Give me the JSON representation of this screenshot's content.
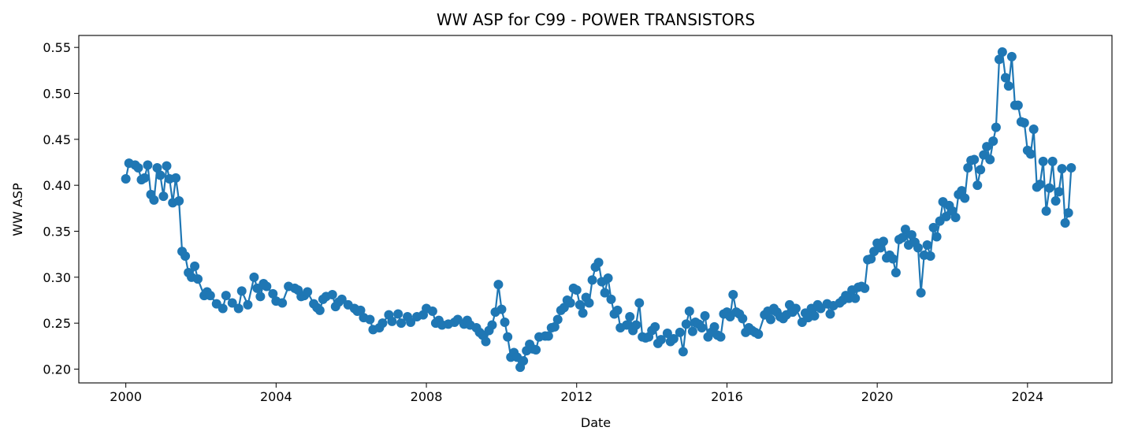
{
  "chart_data": {
    "type": "line",
    "title": "WW ASP for C99 - POWER TRANSISTORS",
    "xlabel": "Date",
    "ylabel": "WW ASP",
    "x_range": [
      "1998-10-01",
      "2026-04-01"
    ],
    "ylim": [
      0.185,
      0.563
    ],
    "x_ticks": [
      {
        "date": "2000-01-01",
        "label": "2000"
      },
      {
        "date": "2004-01-01",
        "label": "2004"
      },
      {
        "date": "2008-01-01",
        "label": "2008"
      },
      {
        "date": "2012-01-01",
        "label": "2012"
      },
      {
        "date": "2016-01-01",
        "label": "2016"
      },
      {
        "date": "2020-01-01",
        "label": "2020"
      },
      {
        "date": "2024-01-01",
        "label": "2024"
      }
    ],
    "y_ticks": [
      {
        "value": 0.2,
        "label": "0.20"
      },
      {
        "value": 0.25,
        "label": "0.25"
      },
      {
        "value": 0.3,
        "label": "0.30"
      },
      {
        "value": 0.35,
        "label": "0.35"
      },
      {
        "value": 0.4,
        "label": "0.40"
      },
      {
        "value": 0.45,
        "label": "0.45"
      },
      {
        "value": 0.5,
        "label": "0.50"
      },
      {
        "value": 0.55,
        "label": "0.55"
      }
    ],
    "grid": false,
    "series": [
      {
        "color": "#1f77b4",
        "marker": "circle",
        "points": [
          [
            "2000-01-01",
            0.407
          ],
          [
            "2000-02-01",
            0.424
          ],
          [
            "2000-04-01",
            0.422
          ],
          [
            "2000-05-01",
            0.419
          ],
          [
            "2000-06-01",
            0.406
          ],
          [
            "2000-07-01",
            0.408
          ],
          [
            "2000-08-01",
            0.422
          ],
          [
            "2000-09-01",
            0.39
          ],
          [
            "2000-10-01",
            0.384
          ],
          [
            "2000-11-01",
            0.419
          ],
          [
            "2000-12-01",
            0.411
          ],
          [
            "2001-01-01",
            0.388
          ],
          [
            "2001-02-01",
            0.421
          ],
          [
            "2001-03-01",
            0.407
          ],
          [
            "2001-04-01",
            0.381
          ],
          [
            "2001-05-01",
            0.408
          ],
          [
            "2001-06-01",
            0.383
          ],
          [
            "2001-07-01",
            0.328
          ],
          [
            "2001-08-01",
            0.323
          ],
          [
            "2001-09-01",
            0.305
          ],
          [
            "2001-10-01",
            0.3
          ],
          [
            "2001-11-01",
            0.312
          ],
          [
            "2001-12-01",
            0.298
          ],
          [
            "2002-02-01",
            0.28
          ],
          [
            "2002-03-01",
            0.284
          ],
          [
            "2002-04-01",
            0.28
          ],
          [
            "2002-06-01",
            0.271
          ],
          [
            "2002-08-01",
            0.266
          ],
          [
            "2002-09-01",
            0.28
          ],
          [
            "2002-11-01",
            0.272
          ],
          [
            "2003-01-01",
            0.266
          ],
          [
            "2003-02-01",
            0.285
          ],
          [
            "2003-04-01",
            0.27
          ],
          [
            "2003-06-01",
            0.3
          ],
          [
            "2003-07-01",
            0.288
          ],
          [
            "2003-08-01",
            0.279
          ],
          [
            "2003-09-01",
            0.293
          ],
          [
            "2003-10-01",
            0.29
          ],
          [
            "2003-12-01",
            0.282
          ],
          [
            "2004-01-01",
            0.274
          ],
          [
            "2004-03-01",
            0.272
          ],
          [
            "2004-05-01",
            0.29
          ],
          [
            "2004-07-01",
            0.288
          ],
          [
            "2004-08-01",
            0.286
          ],
          [
            "2004-09-01",
            0.279
          ],
          [
            "2004-10-01",
            0.28
          ],
          [
            "2004-11-01",
            0.284
          ],
          [
            "2005-01-01",
            0.271
          ],
          [
            "2005-02-01",
            0.267
          ],
          [
            "2005-03-01",
            0.264
          ],
          [
            "2005-04-01",
            0.276
          ],
          [
            "2005-05-01",
            0.279
          ],
          [
            "2005-07-01",
            0.281
          ],
          [
            "2005-08-01",
            0.268
          ],
          [
            "2005-09-01",
            0.273
          ],
          [
            "2005-10-01",
            0.276
          ],
          [
            "2005-12-01",
            0.27
          ],
          [
            "2006-02-01",
            0.266
          ],
          [
            "2006-03-01",
            0.263
          ],
          [
            "2006-04-01",
            0.264
          ],
          [
            "2006-05-01",
            0.256
          ],
          [
            "2006-07-01",
            0.254
          ],
          [
            "2006-08-01",
            0.243
          ],
          [
            "2006-10-01",
            0.245
          ],
          [
            "2006-11-01",
            0.25
          ],
          [
            "2007-01-01",
            0.259
          ],
          [
            "2007-02-01",
            0.252
          ],
          [
            "2007-04-01",
            0.26
          ],
          [
            "2007-05-01",
            0.25
          ],
          [
            "2007-07-01",
            0.257
          ],
          [
            "2007-08-01",
            0.251
          ],
          [
            "2007-10-01",
            0.257
          ],
          [
            "2007-12-01",
            0.259
          ],
          [
            "2008-01-01",
            0.266
          ],
          [
            "2008-03-01",
            0.263
          ],
          [
            "2008-04-01",
            0.25
          ],
          [
            "2008-05-01",
            0.253
          ],
          [
            "2008-06-01",
            0.248
          ],
          [
            "2008-08-01",
            0.249
          ],
          [
            "2008-10-01",
            0.251
          ],
          [
            "2008-11-01",
            0.254
          ],
          [
            "2009-01-01",
            0.249
          ],
          [
            "2009-02-01",
            0.253
          ],
          [
            "2009-03-01",
            0.248
          ],
          [
            "2009-05-01",
            0.245
          ],
          [
            "2009-06-01",
            0.24
          ],
          [
            "2009-07-01",
            0.237
          ],
          [
            "2009-08-01",
            0.23
          ],
          [
            "2009-09-01",
            0.242
          ],
          [
            "2009-10-01",
            0.248
          ],
          [
            "2009-11-01",
            0.262
          ],
          [
            "2009-12-01",
            0.292
          ],
          [
            "2010-01-01",
            0.265
          ],
          [
            "2010-02-01",
            0.251
          ],
          [
            "2010-03-01",
            0.235
          ],
          [
            "2010-04-01",
            0.213
          ],
          [
            "2010-05-01",
            0.218
          ],
          [
            "2010-06-01",
            0.213
          ],
          [
            "2010-07-01",
            0.202
          ],
          [
            "2010-08-01",
            0.209
          ],
          [
            "2010-09-01",
            0.22
          ],
          [
            "2010-10-01",
            0.227
          ],
          [
            "2010-11-01",
            0.222
          ],
          [
            "2010-12-01",
            0.221
          ],
          [
            "2011-01-01",
            0.235
          ],
          [
            "2011-03-01",
            0.236
          ],
          [
            "2011-04-01",
            0.236
          ],
          [
            "2011-05-01",
            0.245
          ],
          [
            "2011-06-01",
            0.246
          ],
          [
            "2011-07-01",
            0.254
          ],
          [
            "2011-08-01",
            0.264
          ],
          [
            "2011-09-01",
            0.267
          ],
          [
            "2011-10-01",
            0.275
          ],
          [
            "2011-11-01",
            0.272
          ],
          [
            "2011-12-01",
            0.288
          ],
          [
            "2012-01-01",
            0.286
          ],
          [
            "2012-02-01",
            0.27
          ],
          [
            "2012-03-01",
            0.261
          ],
          [
            "2012-04-01",
            0.278
          ],
          [
            "2012-05-01",
            0.272
          ],
          [
            "2012-06-01",
            0.297
          ],
          [
            "2012-07-01",
            0.311
          ],
          [
            "2012-08-01",
            0.316
          ],
          [
            "2012-09-01",
            0.295
          ],
          [
            "2012-10-01",
            0.283
          ],
          [
            "2012-11-01",
            0.299
          ],
          [
            "2012-12-01",
            0.276
          ],
          [
            "2013-01-01",
            0.26
          ],
          [
            "2013-02-01",
            0.264
          ],
          [
            "2013-03-01",
            0.245
          ],
          [
            "2013-05-01",
            0.248
          ],
          [
            "2013-06-01",
            0.257
          ],
          [
            "2013-07-01",
            0.242
          ],
          [
            "2013-08-01",
            0.248
          ],
          [
            "2013-09-01",
            0.272
          ],
          [
            "2013-10-01",
            0.235
          ],
          [
            "2013-11-01",
            0.234
          ],
          [
            "2013-12-01",
            0.235
          ],
          [
            "2014-01-01",
            0.242
          ],
          [
            "2014-02-01",
            0.246
          ],
          [
            "2014-03-01",
            0.228
          ],
          [
            "2014-04-01",
            0.232
          ],
          [
            "2014-06-01",
            0.239
          ],
          [
            "2014-07-01",
            0.23
          ],
          [
            "2014-08-01",
            0.233
          ],
          [
            "2014-10-01",
            0.24
          ],
          [
            "2014-11-01",
            0.219
          ],
          [
            "2014-12-01",
            0.249
          ],
          [
            "2015-01-01",
            0.263
          ],
          [
            "2015-02-01",
            0.241
          ],
          [
            "2015-03-01",
            0.251
          ],
          [
            "2015-04-01",
            0.249
          ],
          [
            "2015-05-01",
            0.245
          ],
          [
            "2015-06-01",
            0.258
          ],
          [
            "2015-07-01",
            0.235
          ],
          [
            "2015-08-01",
            0.24
          ],
          [
            "2015-09-01",
            0.246
          ],
          [
            "2015-10-01",
            0.237
          ],
          [
            "2015-11-01",
            0.235
          ],
          [
            "2015-12-01",
            0.26
          ],
          [
            "2016-01-01",
            0.262
          ],
          [
            "2016-02-01",
            0.257
          ],
          [
            "2016-03-01",
            0.281
          ],
          [
            "2016-04-01",
            0.262
          ],
          [
            "2016-05-01",
            0.26
          ],
          [
            "2016-06-01",
            0.255
          ],
          [
            "2016-07-01",
            0.24
          ],
          [
            "2016-08-01",
            0.245
          ],
          [
            "2016-09-01",
            0.242
          ],
          [
            "2016-10-01",
            0.24
          ],
          [
            "2016-11-01",
            0.238
          ],
          [
            "2017-01-01",
            0.259
          ],
          [
            "2017-02-01",
            0.263
          ],
          [
            "2017-03-01",
            0.254
          ],
          [
            "2017-04-01",
            0.266
          ],
          [
            "2017-05-01",
            0.262
          ],
          [
            "2017-06-01",
            0.257
          ],
          [
            "2017-07-01",
            0.255
          ],
          [
            "2017-08-01",
            0.259
          ],
          [
            "2017-09-01",
            0.27
          ],
          [
            "2017-10-01",
            0.262
          ],
          [
            "2017-11-01",
            0.266
          ],
          [
            "2018-01-01",
            0.251
          ],
          [
            "2018-02-01",
            0.261
          ],
          [
            "2018-03-01",
            0.256
          ],
          [
            "2018-04-01",
            0.266
          ],
          [
            "2018-05-01",
            0.258
          ],
          [
            "2018-06-01",
            0.27
          ],
          [
            "2018-07-01",
            0.266
          ],
          [
            "2018-09-01",
            0.271
          ],
          [
            "2018-10-01",
            0.26
          ],
          [
            "2018-11-01",
            0.269
          ],
          [
            "2019-01-01",
            0.272
          ],
          [
            "2019-02-01",
            0.275
          ],
          [
            "2019-03-01",
            0.28
          ],
          [
            "2019-04-01",
            0.277
          ],
          [
            "2019-05-01",
            0.286
          ],
          [
            "2019-06-01",
            0.277
          ],
          [
            "2019-07-01",
            0.289
          ],
          [
            "2019-08-01",
            0.29
          ],
          [
            "2019-09-01",
            0.288
          ],
          [
            "2019-10-01",
            0.319
          ],
          [
            "2019-11-01",
            0.32
          ],
          [
            "2019-12-01",
            0.328
          ],
          [
            "2020-01-01",
            0.337
          ],
          [
            "2020-02-01",
            0.332
          ],
          [
            "2020-03-01",
            0.339
          ],
          [
            "2020-04-01",
            0.321
          ],
          [
            "2020-05-01",
            0.324
          ],
          [
            "2020-06-01",
            0.32
          ],
          [
            "2020-07-01",
            0.305
          ],
          [
            "2020-08-01",
            0.341
          ],
          [
            "2020-09-01",
            0.343
          ],
          [
            "2020-10-01",
            0.352
          ],
          [
            "2020-11-01",
            0.335
          ],
          [
            "2020-12-01",
            0.346
          ],
          [
            "2021-01-01",
            0.338
          ],
          [
            "2021-02-01",
            0.332
          ],
          [
            "2021-03-01",
            0.283
          ],
          [
            "2021-04-01",
            0.324
          ],
          [
            "2021-05-01",
            0.335
          ],
          [
            "2021-06-01",
            0.323
          ],
          [
            "2021-07-01",
            0.354
          ],
          [
            "2021-08-01",
            0.344
          ],
          [
            "2021-09-01",
            0.361
          ],
          [
            "2021-10-01",
            0.382
          ],
          [
            "2021-11-01",
            0.366
          ],
          [
            "2021-12-01",
            0.378
          ],
          [
            "2022-01-01",
            0.372
          ],
          [
            "2022-02-01",
            0.365
          ],
          [
            "2022-03-01",
            0.39
          ],
          [
            "2022-04-01",
            0.394
          ],
          [
            "2022-05-01",
            0.386
          ],
          [
            "2022-06-01",
            0.419
          ],
          [
            "2022-07-01",
            0.427
          ],
          [
            "2022-08-01",
            0.428
          ],
          [
            "2022-09-01",
            0.4
          ],
          [
            "2022-10-01",
            0.417
          ],
          [
            "2022-11-01",
            0.433
          ],
          [
            "2022-12-01",
            0.442
          ],
          [
            "2023-01-01",
            0.428
          ],
          [
            "2023-02-01",
            0.448
          ],
          [
            "2023-03-01",
            0.463
          ],
          [
            "2023-04-01",
            0.537
          ],
          [
            "2023-05-01",
            0.545
          ],
          [
            "2023-06-01",
            0.517
          ],
          [
            "2023-07-01",
            0.508
          ],
          [
            "2023-08-01",
            0.54
          ],
          [
            "2023-09-01",
            0.487
          ],
          [
            "2023-10-01",
            0.487
          ],
          [
            "2023-11-01",
            0.469
          ],
          [
            "2023-12-01",
            0.468
          ],
          [
            "2024-01-01",
            0.438
          ],
          [
            "2024-02-01",
            0.434
          ],
          [
            "2024-03-01",
            0.461
          ],
          [
            "2024-04-01",
            0.398
          ],
          [
            "2024-05-01",
            0.401
          ],
          [
            "2024-06-01",
            0.426
          ],
          [
            "2024-07-01",
            0.372
          ],
          [
            "2024-08-01",
            0.397
          ],
          [
            "2024-09-01",
            0.426
          ],
          [
            "2024-10-01",
            0.383
          ],
          [
            "2024-11-01",
            0.393
          ],
          [
            "2024-12-01",
            0.418
          ],
          [
            "2025-01-01",
            0.359
          ],
          [
            "2025-02-01",
            0.37
          ],
          [
            "2025-03-01",
            0.419
          ]
        ]
      }
    ]
  }
}
